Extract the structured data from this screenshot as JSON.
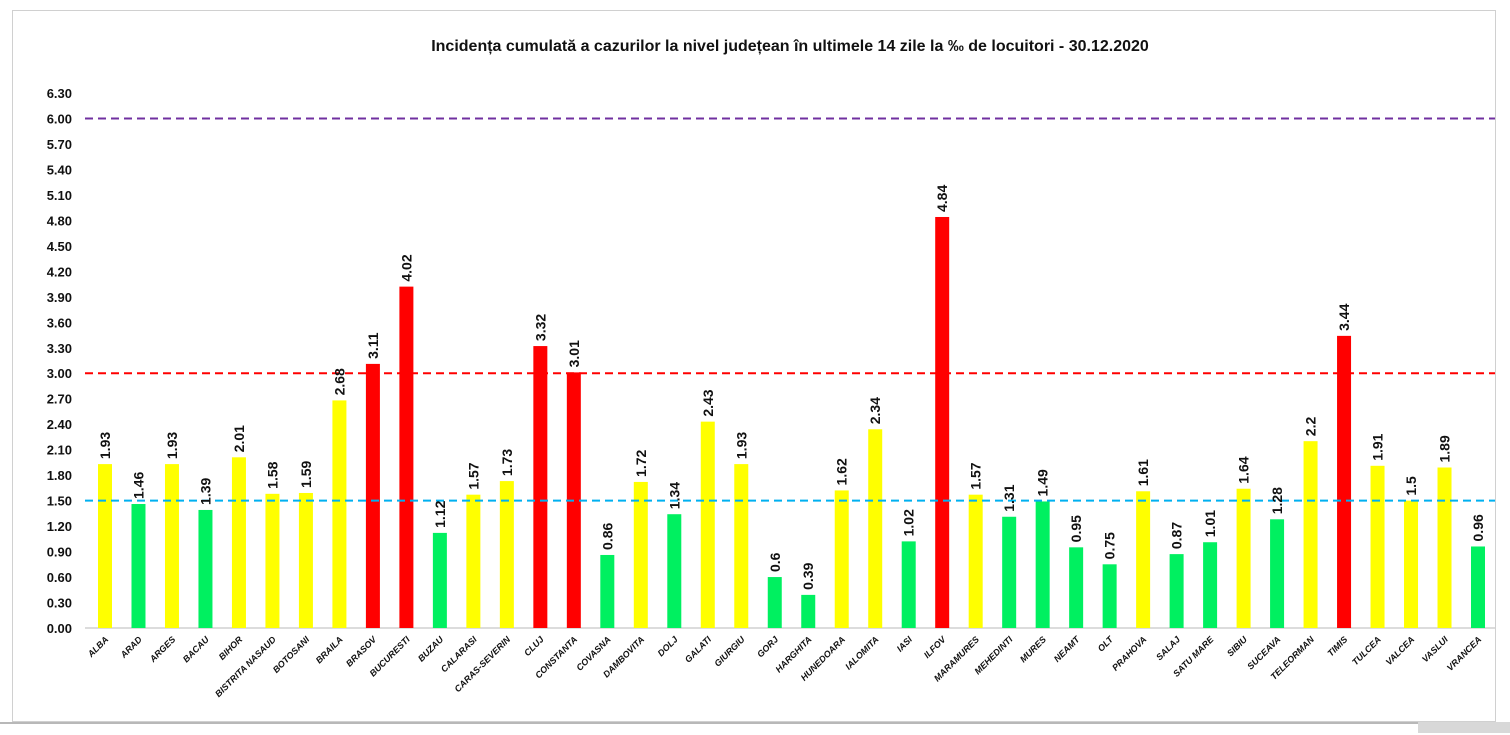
{
  "chart_data": {
    "type": "bar",
    "title": "Incidența cumulată a cazurilor la nivel județean în ultimele 14 zile la ‰ de locuitori - 30.12.2020",
    "xlabel": "",
    "ylabel": "",
    "ylim": [
      0,
      6.3
    ],
    "yticks": [
      "0.00",
      "0.30",
      "0.60",
      "0.90",
      "1.20",
      "1.50",
      "1.80",
      "2.10",
      "2.40",
      "2.70",
      "3.00",
      "3.30",
      "3.60",
      "3.90",
      "4.20",
      "4.50",
      "4.80",
      "5.10",
      "5.40",
      "5.70",
      "6.00",
      "6.30"
    ],
    "categories": [
      "ALBA",
      "ARAD",
      "ARGES",
      "BACAU",
      "BIHOR",
      "BISTRITA NASAUD",
      "BOTOSANI",
      "BRAILA",
      "BRASOV",
      "BUCURESTI",
      "BUZAU",
      "CALARASI",
      "CARAS-SEVERIN",
      "CLUJ",
      "CONSTANTA",
      "COVASNA",
      "DAMBOVITA",
      "DOLJ",
      "GALATI",
      "GIURGIU",
      "GORJ",
      "HARGHITA",
      "HUNEDOARA",
      "IALOMITA",
      "IASI",
      "ILFOV",
      "MARAMURES",
      "MEHEDINTI",
      "MURES",
      "NEAMT",
      "OLT",
      "PRAHOVA",
      "SALAJ",
      "SATU MARE",
      "SIBIU",
      "SUCEAVA",
      "TELEORMAN",
      "TIMIS",
      "TULCEA",
      "VALCEA",
      "VASLUI",
      "VRANCEA"
    ],
    "values": [
      1.93,
      1.46,
      1.93,
      1.39,
      2.01,
      1.58,
      1.59,
      2.68,
      3.11,
      4.02,
      1.12,
      1.57,
      1.73,
      3.32,
      3.01,
      0.86,
      1.72,
      1.34,
      2.43,
      1.93,
      0.6,
      0.39,
      1.62,
      2.34,
      1.02,
      4.84,
      1.57,
      1.31,
      1.49,
      0.95,
      0.75,
      1.61,
      0.87,
      1.01,
      1.64,
      1.28,
      2.2,
      3.44,
      1.91,
      1.5,
      1.89,
      0.96
    ],
    "value_labels": [
      "1.93",
      "1.46",
      "1.93",
      "1.39",
      "2.01",
      "1.58",
      "1.59",
      "2.68",
      "3.11",
      "4.02",
      "1.12",
      "1.57",
      "1.73",
      "3.32",
      "3.01",
      "0.86",
      "1.72",
      "1.34",
      "2.43",
      "1.93",
      "0.6",
      "0.39",
      "1.62",
      "2.34",
      "1.02",
      "4.84",
      "1.57",
      "1.31",
      "1.49",
      "0.95",
      "0.75",
      "1.61",
      "0.87",
      "1.01",
      "1.64",
      "1.28",
      "2.2",
      "3.44",
      "1.91",
      "1.5",
      "1.89",
      "0.96"
    ],
    "reference_lines": [
      {
        "value": 6.0,
        "color": "#7030A0"
      },
      {
        "value": 3.0,
        "color": "#FF0000"
      },
      {
        "value": 1.5,
        "color": "#00B0F0"
      }
    ],
    "color_rules": {
      "below_1_5": "#00F060",
      "from_1_5_to_3": "#FFFF00",
      "above_3": "#FF0000"
    },
    "grid": false,
    "legend": "none"
  }
}
